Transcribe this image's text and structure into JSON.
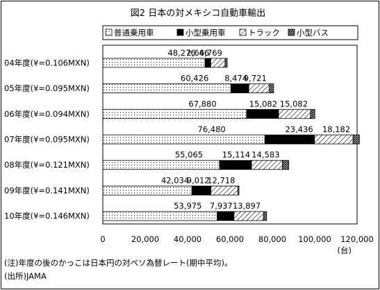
{
  "chart_data": {
    "type": "bar",
    "orientation": "horizontal",
    "stacked": true,
    "title": "図2 日本の対メキシコ自動車輸出",
    "categories": [
      "04年度(¥=0.106MXN)",
      "05年度(¥=0.095MXN)",
      "06年度(¥=0.094MXN)",
      "07年度(¥=0.095MXN)",
      "08年度(¥=0.121MXN)",
      "09年度(¥=0.141MXN)",
      "10年度(¥=0.146MXN)"
    ],
    "series": [
      {
        "name": "普通乗用車",
        "values": [
          48276,
          60426,
          67880,
          76480,
          55065,
          42034,
          53975
        ],
        "labels": [
          "48,276",
          "60,426",
          "67,880",
          "76,480",
          "55,065",
          "42,034",
          "53,975"
        ]
      },
      {
        "name": "小型乗用車",
        "values": [
          2646,
          8474,
          15082,
          23436,
          15114,
          9012,
          7937
        ],
        "labels": [
          "2,646",
          "8,474",
          "15,082",
          "23,436",
          "15,114",
          "9,012",
          "7,937"
        ]
      },
      {
        "name": "トラック",
        "values": [
          6769,
          9721,
          15082,
          18182,
          14583,
          12718,
          13897
        ],
        "labels": [
          "6,769",
          "9,721",
          "15,082",
          "18,182",
          "14,583",
          "12,718",
          "13,897"
        ]
      },
      {
        "name": "小型バス",
        "values": [
          1000,
          2000,
          2000,
          3000,
          3000,
          500,
          1500
        ],
        "labels": null
      }
    ],
    "xlim": [
      0,
      120000
    ],
    "xticks": [
      "0",
      "20,000",
      "40,000",
      "60,000",
      "80,000",
      "100,000",
      "120,000"
    ],
    "xunit": "(台)",
    "legend_position": "top-right",
    "grid": false
  },
  "notes": {
    "note1": "(注)年度の後のかっこは日本円の対ペソ為替レート(期中平均)。",
    "source": "(出所)JAMA"
  }
}
